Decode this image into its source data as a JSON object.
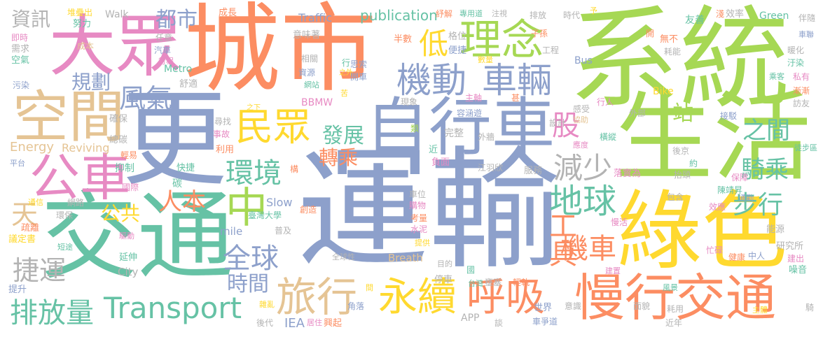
{
  "palette": {
    "green": "#a6d854",
    "blue": "#8da0cb",
    "orange": "#fc8d62",
    "teal": "#66c2a5",
    "pink": "#e78ac3",
    "yellow": "#ffd92f",
    "tan": "#e5c494",
    "gray": "#b3b3b3"
  },
  "words": [
    {
      "text": "運輸",
      "color": "blue"
    },
    {
      "text": "系統",
      "color": "green"
    },
    {
      "text": "城市",
      "color": "orange"
    },
    {
      "text": "交通",
      "color": "teal"
    },
    {
      "text": "更",
      "color": "blue"
    },
    {
      "text": "生活",
      "color": "green"
    },
    {
      "text": "綠色",
      "color": "yellow"
    },
    {
      "text": "大眾",
      "color": "pink"
    },
    {
      "text": "自行車",
      "color": "blue"
    },
    {
      "text": "慢行交通",
      "color": "orange"
    },
    {
      "text": "空間",
      "color": "tan"
    },
    {
      "text": "公車",
      "color": "pink"
    },
    {
      "text": "理念",
      "color": "green"
    },
    {
      "text": "機動",
      "color": "blue"
    },
    {
      "text": "車輛",
      "color": "blue"
    },
    {
      "text": "民眾",
      "color": "yellow"
    },
    {
      "text": "Transport",
      "color": "teal"
    },
    {
      "text": "旅行",
      "color": "tan"
    },
    {
      "text": "永續",
      "color": "yellow"
    },
    {
      "text": "呼吸",
      "color": "orange"
    },
    {
      "text": "排放量",
      "color": "teal"
    },
    {
      "text": "中",
      "color": "green"
    },
    {
      "text": "地球",
      "color": "teal"
    },
    {
      "text": "環境",
      "color": "teal"
    },
    {
      "text": "減少",
      "color": "gray"
    },
    {
      "text": "全球",
      "color": "blue"
    },
    {
      "text": "發展",
      "color": "teal"
    },
    {
      "text": "風氣",
      "color": "blue"
    },
    {
      "text": "人本",
      "color": "orange"
    },
    {
      "text": "規劃",
      "color": "blue"
    },
    {
      "text": "都市",
      "color": "blue"
    },
    {
      "text": "低",
      "color": "yellow"
    },
    {
      "text": "工具",
      "color": "orange"
    },
    {
      "text": "機車",
      "color": "orange"
    },
    {
      "text": "捷運",
      "color": "gray"
    },
    {
      "text": "時間",
      "color": "blue"
    },
    {
      "text": "步行",
      "color": "teal"
    },
    {
      "text": "騎乘",
      "color": "teal"
    },
    {
      "text": "之間",
      "color": "teal"
    },
    {
      "text": "股",
      "color": "pink"
    },
    {
      "text": "站",
      "color": "green"
    },
    {
      "text": "轉乘",
      "color": "orange"
    },
    {
      "text": "天",
      "color": "tan"
    },
    {
      "text": "公共",
      "color": "yellow"
    },
    {
      "text": "資訊",
      "color": "gray"
    },
    {
      "text": "publication",
      "color": "teal"
    },
    {
      "text": "Energy",
      "color": "tan"
    },
    {
      "text": "Reviving",
      "color": "tan"
    },
    {
      "text": "Traffic",
      "color": "blue"
    },
    {
      "text": "Walk",
      "color": "gray"
    },
    {
      "text": "Slow",
      "color": "blue"
    },
    {
      "text": "mile",
      "color": "blue"
    },
    {
      "text": "Breath",
      "color": "tan"
    },
    {
      "text": "City",
      "color": "gray"
    },
    {
      "text": "Metro",
      "color": "teal"
    },
    {
      "text": "Bus",
      "color": "blue"
    },
    {
      "text": "Bike",
      "color": "yellow"
    },
    {
      "text": "Green",
      "color": "teal"
    },
    {
      "text": "BBMW",
      "color": "pink"
    },
    {
      "text": "IEA",
      "color": "blue"
    },
    {
      "text": "APP",
      "color": "gray"
    },
    {
      "text": "成長",
      "color": "orange"
    },
    {
      "text": "堆疊出",
      "color": "yellow"
    },
    {
      "text": "努力",
      "color": "teal"
    },
    {
      "text": "即時",
      "color": "pink"
    },
    {
      "text": "需求",
      "color": "gray"
    },
    {
      "text": "空氣",
      "color": "teal"
    },
    {
      "text": "污染",
      "color": "blue"
    },
    {
      "text": "成本",
      "color": "tan"
    },
    {
      "text": "任意",
      "color": "gray"
    },
    {
      "text": "汽車",
      "color": "blue"
    },
    {
      "text": "行程",
      "color": "pink"
    },
    {
      "text": "舒適",
      "color": "gray"
    },
    {
      "text": "確保",
      "color": "gray"
    },
    {
      "text": "總碳",
      "color": "gray"
    },
    {
      "text": "輕易",
      "color": "orange"
    },
    {
      "text": "抑制",
      "color": "teal"
    },
    {
      "text": "快捷",
      "color": "teal"
    },
    {
      "text": "國際",
      "color": "pink"
    },
    {
      "text": "碳",
      "color": "teal"
    },
    {
      "text": "網路",
      "color": "gray"
    },
    {
      "text": "通信",
      "color": "yellow"
    },
    {
      "text": "環保",
      "color": "gray"
    },
    {
      "text": "疏離",
      "color": "orange"
    },
    {
      "text": "議定書",
      "color": "yellow"
    },
    {
      "text": "短途",
      "color": "teal"
    },
    {
      "text": "驅動",
      "color": "pink"
    },
    {
      "text": "延伸",
      "color": "teal"
    },
    {
      "text": "提升",
      "color": "blue"
    },
    {
      "text": "後代",
      "color": "gray"
    },
    {
      "text": "雜亂",
      "color": "yellow"
    },
    {
      "text": "居住",
      "color": "pink"
    },
    {
      "text": "興起",
      "color": "orange"
    },
    {
      "text": "角落",
      "color": "blue"
    },
    {
      "text": "臺灣大學",
      "color": "teal"
    },
    {
      "text": "平台",
      "color": "blue"
    },
    {
      "text": "尋找",
      "color": "gray"
    },
    {
      "text": "事故",
      "color": "pink"
    },
    {
      "text": "利用",
      "color": "orange"
    },
    {
      "text": "構",
      "color": "orange"
    },
    {
      "text": "創造",
      "color": "orange"
    },
    {
      "text": "普及",
      "color": "gray"
    },
    {
      "text": "全球性",
      "color": "gray"
    },
    {
      "text": "意味著",
      "color": "gray"
    },
    {
      "text": "相關",
      "color": "gray"
    },
    {
      "text": "資源",
      "color": "blue"
    },
    {
      "text": "網站",
      "color": "teal"
    },
    {
      "text": "思索",
      "color": "blue"
    },
    {
      "text": "開車",
      "color": "blue"
    },
    {
      "text": "半數",
      "color": "orange"
    },
    {
      "text": "格位",
      "color": "gray"
    },
    {
      "text": "便捷",
      "color": "blue"
    },
    {
      "text": "數量",
      "color": "yellow"
    },
    {
      "text": "紓解",
      "color": "orange"
    },
    {
      "text": "專用道",
      "color": "teal"
    },
    {
      "text": "注視",
      "color": "gray"
    },
    {
      "text": "排放",
      "color": "gray"
    },
    {
      "text": "時代",
      "color": "gray"
    },
    {
      "text": "子孫",
      "color": "orange"
    },
    {
      "text": "工程",
      "color": "gray"
    },
    {
      "text": "效率",
      "color": "gray"
    },
    {
      "text": "伴隨",
      "color": "gray"
    },
    {
      "text": "車聯",
      "color": "blue"
    },
    {
      "text": "友善",
      "color": "teal"
    },
    {
      "text": "淺",
      "color": "orange"
    },
    {
      "text": "予",
      "color": "yellow"
    },
    {
      "text": "無不",
      "color": "orange"
    },
    {
      "text": "耗能",
      "color": "gray"
    },
    {
      "text": "開",
      "color": "orange"
    },
    {
      "text": "暖化",
      "color": "gray"
    },
    {
      "text": "汙染",
      "color": "teal"
    },
    {
      "text": "乘客",
      "color": "teal"
    },
    {
      "text": "私有",
      "color": "pink"
    },
    {
      "text": "漸漸",
      "color": "orange"
    },
    {
      "text": "訪友",
      "color": "gray"
    },
    {
      "text": "主軸",
      "color": "pink"
    },
    {
      "text": "甚",
      "color": "orange"
    },
    {
      "text": "容涵遊",
      "color": "blue"
    },
    {
      "text": "苦",
      "color": "yellow"
    },
    {
      "text": "之外",
      "color": "yellow"
    },
    {
      "text": "現象",
      "color": "gray"
    },
    {
      "text": "類",
      "color": "green"
    },
    {
      "text": "完整",
      "color": "gray"
    },
    {
      "text": "外牆",
      "color": "gray"
    },
    {
      "text": "協助",
      "color": "tan"
    },
    {
      "text": "設計",
      "color": "gray"
    },
    {
      "text": "感受",
      "color": "gray"
    },
    {
      "text": "行人",
      "color": "pink"
    },
    {
      "text": "外部",
      "color": "gray"
    },
    {
      "text": "接駁",
      "color": "blue"
    },
    {
      "text": "橫縱",
      "color": "teal"
    },
    {
      "text": "應度",
      "color": "pink"
    },
    {
      "text": "徒步區",
      "color": "teal"
    },
    {
      "text": "後京",
      "color": "gray"
    },
    {
      "text": "約",
      "color": "teal"
    },
    {
      "text": "抬頭",
      "color": "gray"
    },
    {
      "text": "落實為",
      "color": "pink"
    },
    {
      "text": "保障",
      "color": "pink"
    },
    {
      "text": "陳靖昇",
      "color": "teal"
    },
    {
      "text": "包含",
      "color": "gray"
    },
    {
      "text": "效應",
      "color": "pink"
    },
    {
      "text": "通勤",
      "color": "blue"
    },
    {
      "text": "能源",
      "color": "gray"
    },
    {
      "text": "研究所",
      "color": "gray"
    },
    {
      "text": "健康",
      "color": "orange"
    },
    {
      "text": "中人",
      "color": "blue"
    },
    {
      "text": "建出",
      "color": "pink"
    },
    {
      "text": "噪音",
      "color": "teal"
    },
    {
      "text": "建置",
      "color": "pink"
    },
    {
      "text": "風景",
      "color": "teal"
    },
    {
      "text": "騎",
      "color": "gray"
    },
    {
      "text": "主體",
      "color": "yellow"
    },
    {
      "text": "面貌",
      "color": "gray"
    },
    {
      "text": "耗用",
      "color": "gray"
    },
    {
      "text": "近年",
      "color": "gray"
    },
    {
      "text": "車爭道",
      "color": "blue"
    },
    {
      "text": "世界",
      "color": "blue"
    },
    {
      "text": "意識",
      "color": "gray"
    },
    {
      "text": "輕軌",
      "color": "orange"
    },
    {
      "text": "壅塞",
      "color": "gray"
    },
    {
      "text": "台灣",
      "color": "teal"
    },
    {
      "text": "停車",
      "color": "gray"
    },
    {
      "text": "國",
      "color": "teal"
    },
    {
      "text": "目的",
      "color": "gray"
    },
    {
      "text": "提供",
      "color": "yellow"
    },
    {
      "text": "水泥",
      "color": "pink"
    },
    {
      "text": "考量",
      "color": "orange"
    },
    {
      "text": "購物",
      "color": "pink"
    },
    {
      "text": "車位",
      "color": "gray"
    },
    {
      "text": "忙碌",
      "color": "pink"
    },
    {
      "text": "慢活",
      "color": "pink"
    },
    {
      "text": "江羽欣",
      "color": "gray"
    },
    {
      "text": "服務",
      "color": "gray"
    },
    {
      "text": "負面",
      "color": "pink"
    },
    {
      "text": "近",
      "color": "teal"
    },
    {
      "text": "間",
      "color": "yellow"
    },
    {
      "text": "之下",
      "color": "yellow"
    },
    {
      "text": "行",
      "color": "teal"
    },
    {
      "text": "談",
      "color": "gray"
    }
  ]
}
